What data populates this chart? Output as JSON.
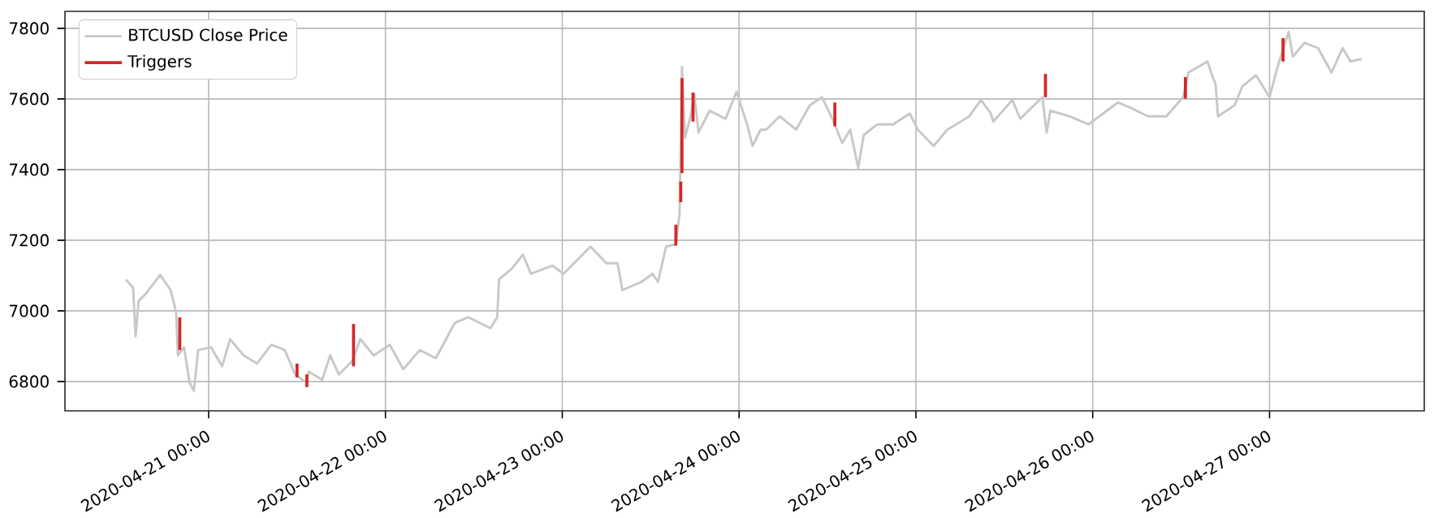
{
  "chart_data": {
    "type": "line",
    "xlim": [
      "2020-04-20T04:30",
      "2020-04-27T21:00"
    ],
    "ylim": [
      6717,
      7848
    ],
    "xticks": [
      {
        "value": "2020-04-21",
        "label": "2020-04-21 00:00"
      },
      {
        "value": "2020-04-22",
        "label": "2020-04-22 00:00"
      },
      {
        "value": "2020-04-23",
        "label": "2020-04-23 00:00"
      },
      {
        "value": "2020-04-24",
        "label": "2020-04-24 00:00"
      },
      {
        "value": "2020-04-25",
        "label": "2020-04-25 00:00"
      },
      {
        "value": "2020-04-26",
        "label": "2020-04-26 00:00"
      },
      {
        "value": "2020-04-27",
        "label": "2020-04-27 00:00"
      }
    ],
    "yticks": [
      6800,
      7000,
      7200,
      7400,
      7600,
      7800
    ],
    "grid": true,
    "legend": "top left",
    "series": [
      {
        "name": "BTCUSD Close Price",
        "color": "#c8c8c8",
        "x": [
          "2020-04-20T12:45",
          "2020-04-20T13:45",
          "2020-04-20T14:05",
          "2020-04-20T14:30",
          "2020-04-20T15:35",
          "2020-04-20T17:25",
          "2020-04-20T18:50",
          "2020-04-20T19:35",
          "2020-04-20T19:50",
          "2020-04-20T20:40",
          "2020-04-20T21:25",
          "2020-04-20T22:00",
          "2020-04-20T22:35",
          "2020-04-21T00:20",
          "2020-04-21T01:50",
          "2020-04-21T02:55",
          "2020-04-21T04:45",
          "2020-04-21T06:35",
          "2020-04-21T08:30",
          "2020-04-21T10:20",
          "2020-04-21T11:45",
          "2020-04-21T13:15",
          "2020-04-21T13:35",
          "2020-04-21T15:25",
          "2020-04-21T16:30",
          "2020-04-21T17:40",
          "2020-04-21T19:30",
          "2020-04-21T20:35",
          "2020-04-21T22:25",
          "2020-04-22T00:35",
          "2020-04-22T02:25",
          "2020-04-22T04:40",
          "2020-04-22T06:50",
          "2020-04-22T09:25",
          "2020-04-22T11:15",
          "2020-04-22T14:15",
          "2020-04-22T15:10",
          "2020-04-22T15:25",
          "2020-04-22T17:10",
          "2020-04-22T18:40",
          "2020-04-22T19:45",
          "2020-04-22T22:40",
          "2020-04-23T00:10",
          "2020-04-23T03:50",
          "2020-04-23T06:00",
          "2020-04-23T07:30",
          "2020-04-23T08:10",
          "2020-04-23T10:45",
          "2020-04-23T12:15",
          "2020-04-23T13:00",
          "2020-04-23T14:05",
          "2020-04-23T15:25",
          "2020-04-23T15:55",
          "2020-04-23T16:15",
          "2020-04-23T16:40",
          "2020-04-23T17:25",
          "2020-04-23T17:55",
          "2020-04-23T18:30",
          "2020-04-23T20:00",
          "2020-04-23T22:10",
          "2020-04-23T23:40",
          "2020-04-24T01:05",
          "2020-04-24T01:50",
          "2020-04-24T02:55",
          "2020-04-24T03:40",
          "2020-04-24T05:30",
          "2020-04-24T07:45",
          "2020-04-24T09:35",
          "2020-04-24T11:15",
          "2020-04-24T12:50",
          "2020-04-24T14:00",
          "2020-04-24T15:05",
          "2020-04-24T16:10",
          "2020-04-24T16:55",
          "2020-04-24T18:45",
          "2020-04-24T20:55",
          "2020-04-24T23:10",
          "2020-04-25T00:15",
          "2020-04-25T02:25",
          "2020-04-25T04:15",
          "2020-04-25T07:15",
          "2020-04-25T08:50",
          "2020-04-25T10:10",
          "2020-04-25T10:30",
          "2020-04-25T13:05",
          "2020-04-25T14:10",
          "2020-04-25T17:10",
          "2020-04-25T17:45",
          "2020-04-25T18:15",
          "2020-04-25T20:50",
          "2020-04-25T23:25",
          "2020-04-26T03:25",
          "2020-04-26T05:15",
          "2020-04-26T07:30",
          "2020-04-26T10:00",
          "2020-04-26T12:15",
          "2020-04-26T13:00",
          "2020-04-26T15:35",
          "2020-04-26T16:20",
          "2020-04-26T16:40",
          "2020-04-26T17:00",
          "2020-04-26T19:15",
          "2020-04-26T20:20",
          "2020-04-26T22:10",
          "2020-04-27T00:00",
          "2020-04-27T01:05",
          "2020-04-27T02:35",
          "2020-04-27T03:10",
          "2020-04-27T04:45",
          "2020-04-27T06:35",
          "2020-04-27T08:25",
          "2020-04-27T09:55",
          "2020-04-27T11:00",
          "2020-04-27T12:30"
        ],
        "values": [
          7089,
          7066,
          6928,
          7028,
          7051,
          7102,
          7059,
          6997,
          6874,
          6897,
          6797,
          6774,
          6889,
          6897,
          6843,
          6920,
          6874,
          6851,
          6904,
          6889,
          6820,
          6797,
          6828,
          6805,
          6874,
          6820,
          6858,
          6920,
          6874,
          6904,
          6835,
          6889,
          6866,
          6966,
          6982,
          6951,
          6982,
          7089,
          7120,
          7159,
          7105,
          7128,
          7105,
          7182,
          7135,
          7135,
          7059,
          7082,
          7105,
          7082,
          7182,
          7189,
          7274,
          7690,
          7490,
          7551,
          7613,
          7505,
          7567,
          7544,
          7621,
          7528,
          7467,
          7513,
          7513,
          7551,
          7513,
          7582,
          7605,
          7536,
          7475,
          7513,
          7405,
          7498,
          7528,
          7528,
          7559,
          7513,
          7467,
          7513,
          7551,
          7597,
          7559,
          7536,
          7597,
          7544,
          7605,
          7505,
          7567,
          7551,
          7528,
          7590,
          7574,
          7551,
          7551,
          7605,
          7675,
          7706,
          7659,
          7644,
          7551,
          7582,
          7636,
          7667,
          7605,
          7690,
          7790,
          7720,
          7759,
          7744,
          7675,
          7744,
          7706,
          7713
        ]
      },
      {
        "name": "Triggers",
        "color": "#d62728",
        "x": [
          "2020-04-20T20:05",
          "2020-04-20T20:05",
          null,
          "2020-04-21T12:00",
          "2020-04-21T12:00",
          null,
          "2020-04-21T13:20",
          "2020-04-21T13:20",
          null,
          "2020-04-21T19:40",
          "2020-04-21T19:40",
          null,
          "2020-04-23T15:25",
          "2020-04-23T15:25",
          null,
          "2020-04-23T16:05",
          "2020-04-23T16:05",
          null,
          "2020-04-23T16:15",
          "2020-04-23T16:15",
          null,
          "2020-04-23T17:45",
          "2020-04-23T17:45",
          null,
          "2020-04-24T13:00",
          "2020-04-24T13:00",
          null,
          "2020-04-25T17:35",
          "2020-04-25T17:35",
          null,
          "2020-04-26T12:35",
          "2020-04-26T12:35",
          null,
          "2020-04-27T01:50",
          "2020-04-27T01:50"
        ],
        "values": [
          6889,
          6982,
          null,
          6812,
          6851,
          null,
          6784,
          6820,
          null,
          6843,
          6963,
          null,
          7185,
          7244,
          null,
          7308,
          7366,
          null,
          7390,
          7659,
          null,
          7536,
          7618,
          null,
          7523,
          7590,
          null,
          7605,
          7671,
          null,
          7601,
          7662,
          null,
          7706,
          7772
        ]
      }
    ]
  }
}
